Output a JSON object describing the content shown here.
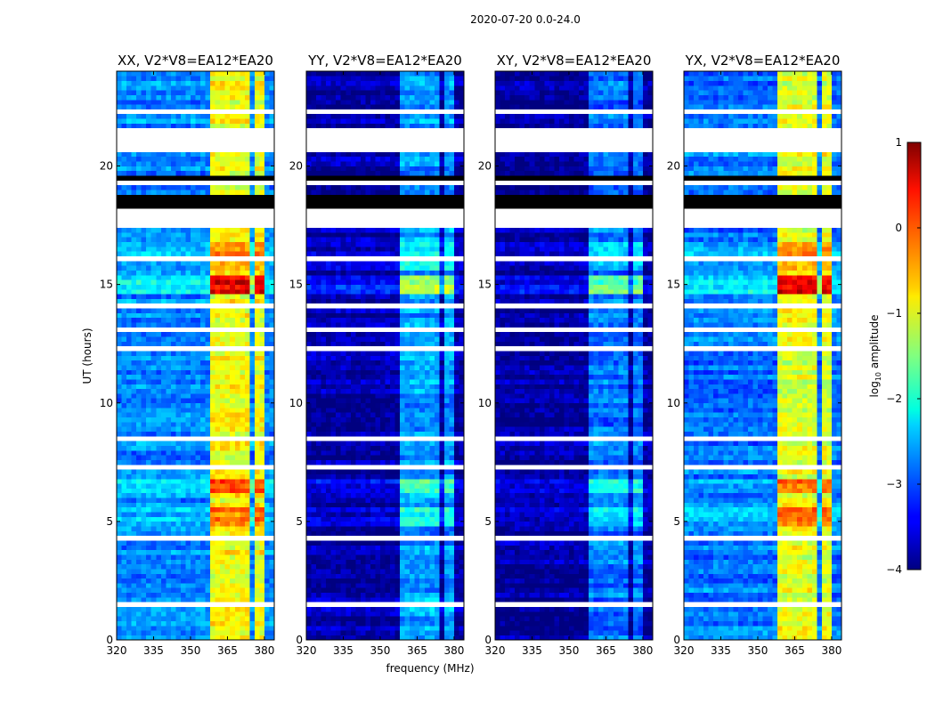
{
  "chart_data": {
    "type": "heatmap",
    "title": "2020-07-20 0.0-24.0",
    "xlabel": "frequency (MHz)",
    "ylabel": "UT (hours)",
    "xlim": [
      320,
      384
    ],
    "ylim": [
      0,
      24
    ],
    "xticks": [
      "320",
      "335",
      "350",
      "365",
      "380"
    ],
    "xtick_values": [
      320,
      335,
      350,
      365,
      380
    ],
    "yticks": [
      "0",
      "5",
      "10",
      "15",
      "20"
    ],
    "ytick_values": [
      0,
      5,
      10,
      15,
      20
    ],
    "freq_step_mhz": 2,
    "time_step_hours": 0.2,
    "colorbar": {
      "label": "log",
      "label_sub": "10",
      "label_rest": " amplitude",
      "range": [
        -4,
        1
      ],
      "ticks": [
        "1",
        "0",
        "−1",
        "−2",
        "−3",
        "−4"
      ],
      "tick_values": [
        1,
        0,
        -1,
        -2,
        -3,
        -4
      ],
      "colormap": "jet"
    },
    "band_mhz": [
      358,
      381
    ],
    "band_gaps_mhz": [
      [
        363.5,
        364.8
      ],
      [
        369.2,
        370.5
      ],
      [
        374.6,
        375.8
      ]
    ],
    "flagged_ut_ranges": [
      [
        23.55,
        23.65
      ],
      [
        22.95,
        23.05
      ],
      [
        22.2,
        22.3
      ],
      [
        20.6,
        21.6
      ],
      [
        19.1,
        19.3
      ],
      [
        19.7,
        19.8
      ],
      [
        17.3,
        18.1
      ],
      [
        16.9,
        17.0
      ],
      [
        16.05,
        16.1
      ],
      [
        14.0,
        14.1
      ],
      [
        13.0,
        13.1
      ],
      [
        12.2,
        12.4
      ],
      [
        11.0,
        11.05
      ],
      [
        10.1,
        10.2
      ],
      [
        8.5,
        8.6
      ],
      [
        7.3,
        7.5
      ],
      [
        7.0,
        7.1
      ],
      [
        5.8,
        5.9
      ],
      [
        4.3,
        4.4
      ],
      [
        3.4,
        3.5
      ],
      [
        2.1,
        2.2
      ],
      [
        1.8,
        1.9
      ],
      [
        1.5,
        1.6
      ]
    ],
    "black_ut_ranges": [
      [
        18.2,
        18.8
      ],
      [
        19.4,
        19.65
      ],
      [
        3.55,
        3.62
      ],
      [
        11.6,
        11.65
      ],
      [
        13.5,
        13.55
      ]
    ],
    "events": [
      {
        "ut": [
          14.5,
          15.3
        ],
        "boost": 1.4
      },
      {
        "ut": [
          6.2,
          6.9
        ],
        "boost": 0.9
      },
      {
        "ut": [
          4.8,
          5.6
        ],
        "boost": 0.7
      },
      {
        "ut": [
          15.5,
          16.8
        ],
        "boost": 0.5
      }
    ],
    "panels": [
      {
        "title": "XX, V2*V8=EA12*EA20",
        "background_level": -2.7,
        "band_level": -0.9,
        "event_scale": 1.0
      },
      {
        "title": "YY, V2*V8=EA12*EA20",
        "background_level": -3.8,
        "band_level": -2.6,
        "event_scale": 0.9
      },
      {
        "title": "XY, V2*V8=EA12*EA20",
        "background_level": -3.85,
        "band_level": -2.8,
        "event_scale": 0.8
      },
      {
        "title": "YX, V2*V8=EA12*EA20",
        "background_level": -2.8,
        "band_level": -1.0,
        "event_scale": 1.05
      }
    ]
  }
}
